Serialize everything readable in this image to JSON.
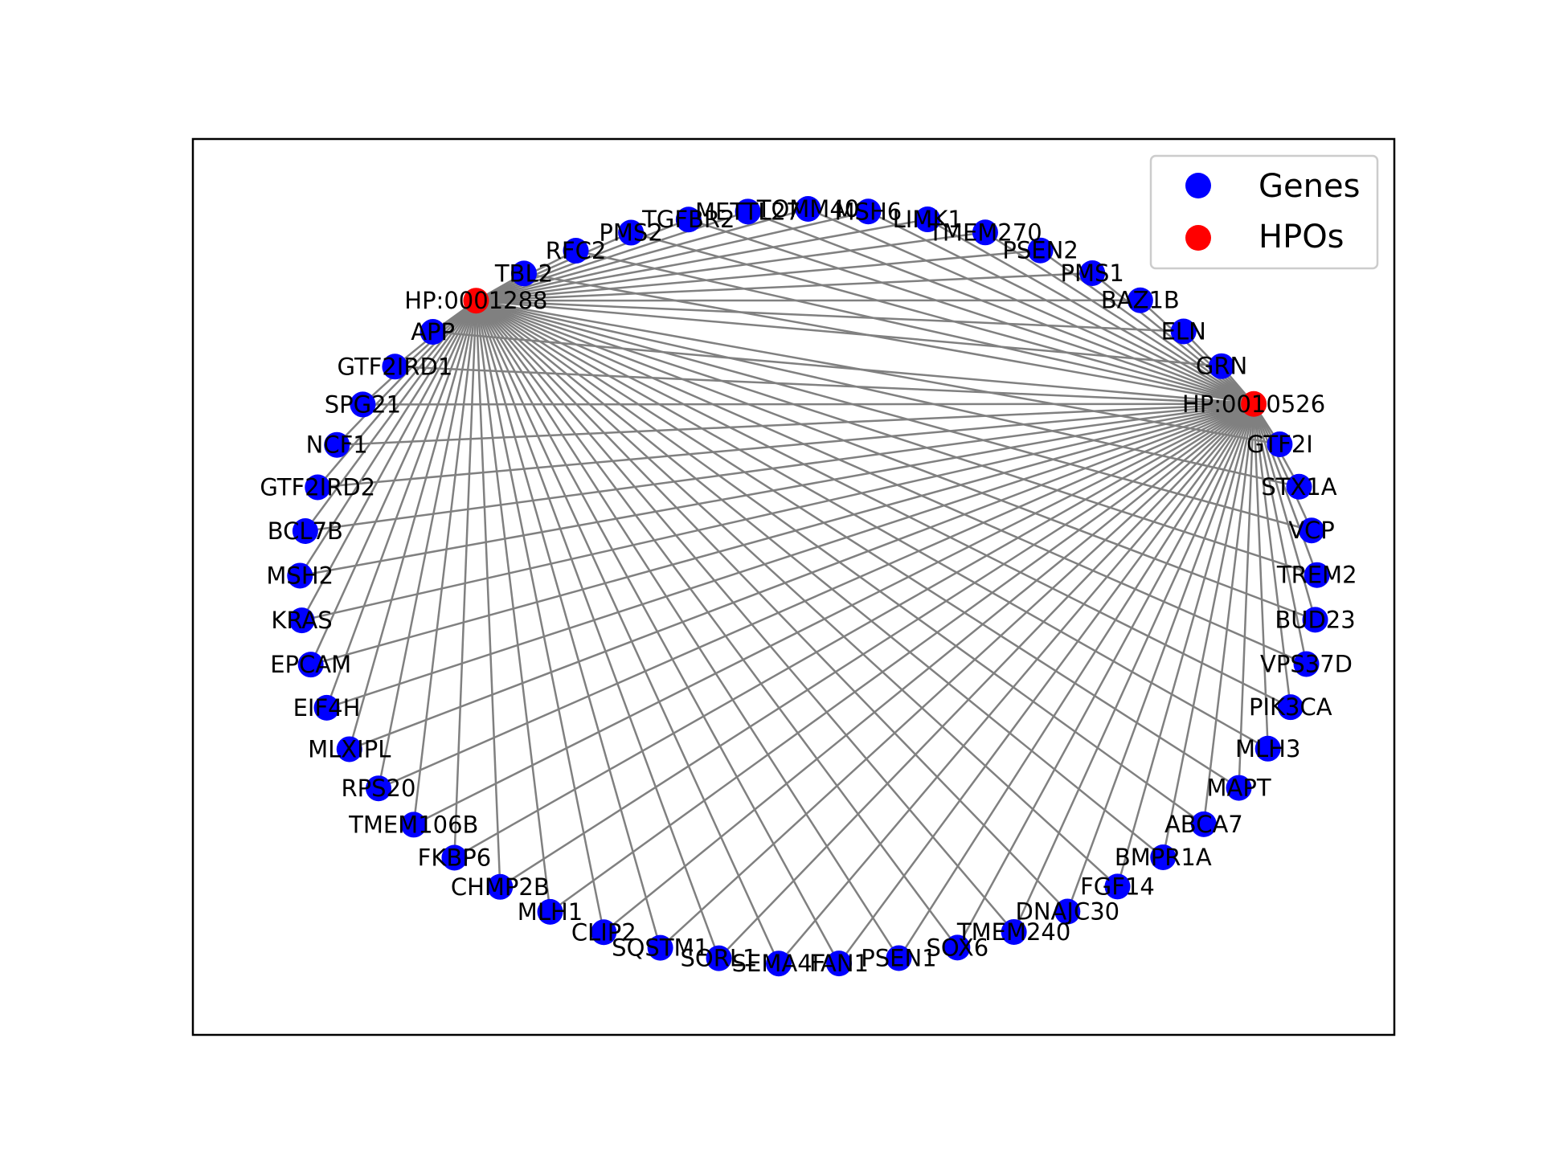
{
  "colors": {
    "gene": "#0000ff",
    "hpo": "#ff0000",
    "edge": "#808080",
    "frame": "#000000",
    "legend_border": "#cccccc"
  },
  "legend": {
    "genes_label": "Genes",
    "hpos_label": "HPOs",
    "placement": "top-right"
  },
  "graph": {
    "layout": "circular",
    "hpo_nodes": [
      "HP:0001288",
      "HP:0010526"
    ],
    "gene_nodes": [
      "APP",
      "GTF2IRD1",
      "SPG21",
      "NCF1",
      "GTF2IRD2",
      "BCL7B",
      "MSH2",
      "KRAS",
      "EPCAM",
      "EIF4H",
      "MLXIPL",
      "RPS20",
      "TMEM106B",
      "FKBP6",
      "CHMP2B",
      "MLH1",
      "CLIP2",
      "SQSTM1",
      "SORL1",
      "SEMA4F",
      "FAN1",
      "PSEN1",
      "SOX6",
      "TMEM240",
      "DNAJC30",
      "FGF14",
      "BMPR1A",
      "ABCA7",
      "MAPT",
      "MLH3",
      "PIK3CA",
      "VPS37D",
      "BUD23",
      "TREM2",
      "VCP",
      "STX1A",
      "GTF2I",
      "GRN",
      "ELN",
      "BAZ1B",
      "PMS1",
      "PSEN2",
      "TMEM270",
      "LIMK1",
      "MSH6",
      "TOMM40",
      "METTL27",
      "TGFBR2",
      "PMS2",
      "RFC2",
      "TBL2"
    ],
    "edges_note": "each HPO node is connected to every gene node"
  }
}
